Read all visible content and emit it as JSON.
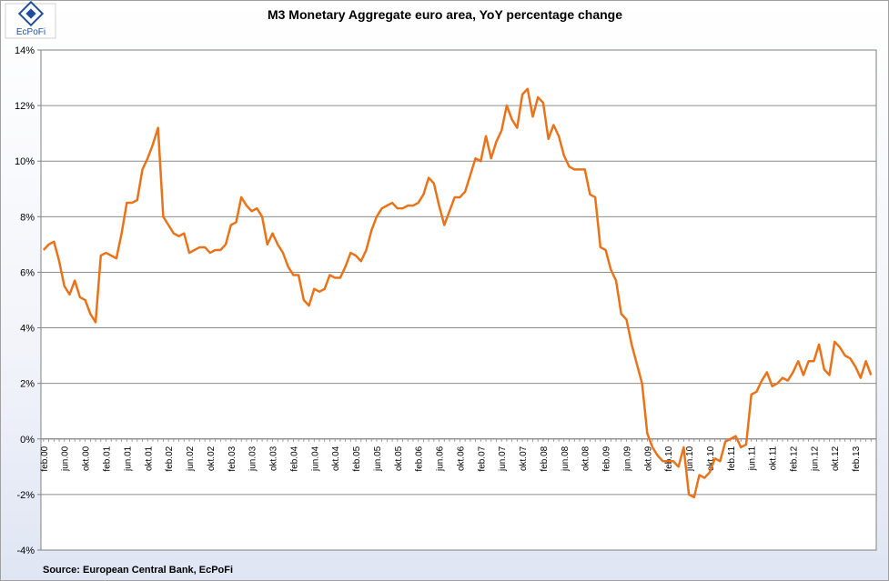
{
  "chart_data": {
    "type": "line",
    "title": "M3 Monetary Aggregate euro area, YoY percentage change",
    "source": "Source: European  Central Bank, EcPoFi",
    "logo_text": "EcPoFi",
    "xlabel": "",
    "ylabel": "",
    "ylim": [
      -4,
      14
    ],
    "yticks": [
      -4,
      -2,
      0,
      2,
      4,
      6,
      8,
      10,
      12,
      14
    ],
    "ytick_labels": [
      "-4%",
      "-2%",
      "0%",
      "2%",
      "4%",
      "6%",
      "8%",
      "10%",
      "12%",
      "14%"
    ],
    "grid": true,
    "legend": "none",
    "line_color": "#e8731a",
    "xtick_labels": [
      "feb.00",
      "jun.00",
      "okt.00",
      "feb.01",
      "jun.01",
      "okt.01",
      "feb.02",
      "jun.02",
      "okt.02",
      "feb.03",
      "jun.03",
      "okt.03",
      "feb.04",
      "jun.04",
      "okt.04",
      "feb.05",
      "jun.05",
      "okt.05",
      "feb.06",
      "jun.06",
      "okt.06",
      "feb.07",
      "jun.07",
      "okt.07",
      "feb.08",
      "jun.08",
      "okt.08",
      "feb.09",
      "jun.09",
      "okt.09",
      "feb.10",
      "jun.10",
      "okt.10",
      "feb.11",
      "jun.11",
      "okt.11",
      "feb.12",
      "jun.12",
      "okt.12",
      "feb.13"
    ],
    "series": [
      {
        "values": [
          6.8,
          7.0,
          7.1,
          6.4,
          5.5,
          5.2,
          5.7,
          5.1,
          5.0,
          4.5,
          4.2,
          6.6,
          6.7,
          6.6,
          6.5,
          7.4,
          8.5,
          8.5,
          8.6,
          9.7,
          10.1,
          10.6,
          11.2,
          8.0,
          7.7,
          7.4,
          7.3,
          7.4,
          6.7,
          6.8,
          6.9,
          6.9,
          6.7,
          6.8,
          6.8,
          7.0,
          7.7,
          7.8,
          8.7,
          8.4,
          8.2,
          8.3,
          8.0,
          7.0,
          7.4,
          7.0,
          6.7,
          6.2,
          5.9,
          5.9,
          5.0,
          4.8,
          5.4,
          5.3,
          5.4,
          5.9,
          5.8,
          5.8,
          6.2,
          6.7,
          6.6,
          6.4,
          6.8,
          7.5,
          8.0,
          8.3,
          8.4,
          8.5,
          8.3,
          8.3,
          8.4,
          8.4,
          8.5,
          8.8,
          9.4,
          9.2,
          8.4,
          7.7,
          8.2,
          8.7,
          8.7,
          8.9,
          9.5,
          10.1,
          10.0,
          10.9,
          10.1,
          10.7,
          11.1,
          12.0,
          11.5,
          11.2,
          12.4,
          12.6,
          11.6,
          12.3,
          12.1,
          10.8,
          11.3,
          10.9,
          10.2,
          9.8,
          9.7,
          9.7,
          9.7,
          8.8,
          8.7,
          6.9,
          6.8,
          6.1,
          5.7,
          4.5,
          4.3,
          3.4,
          2.7,
          2.0,
          0.2,
          -0.3,
          -0.6,
          -0.8,
          -0.8,
          -0.8,
          -1.0,
          -0.3,
          -2.0,
          -2.1,
          -1.3,
          -1.4,
          -1.2,
          -0.7,
          -0.8,
          -0.1,
          0.0,
          0.1,
          -0.3,
          -0.2,
          1.6,
          1.7,
          2.1,
          2.4,
          1.9,
          2.0,
          2.2,
          2.1,
          2.4,
          2.8,
          2.3,
          2.8,
          2.8,
          3.4,
          2.5,
          2.3,
          3.5,
          3.3,
          3.0,
          2.9,
          2.6,
          2.2,
          2.8,
          2.3
        ]
      }
    ]
  }
}
